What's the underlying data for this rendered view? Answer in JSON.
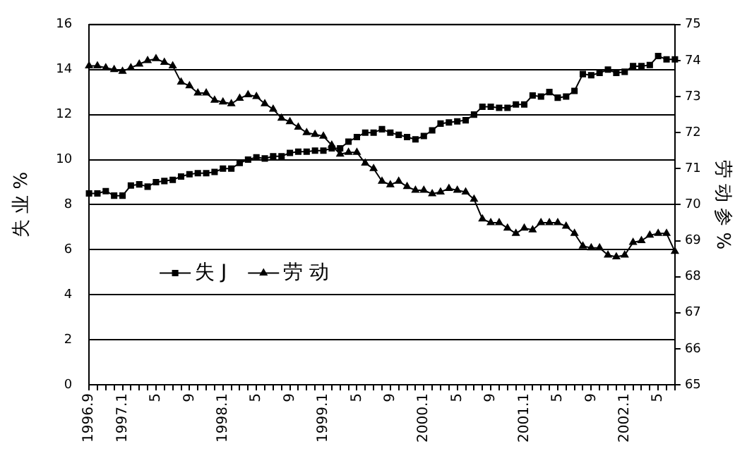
{
  "chart_data": {
    "type": "line",
    "ylabel": "失 业 %",
    "y2label": "劳 动 参 %",
    "categories": [
      "1996.9",
      null,
      null,
      null,
      "1997.1",
      null,
      null,
      null,
      "5",
      null,
      null,
      null,
      "9",
      null,
      null,
      null,
      "1998.1",
      null,
      null,
      null,
      "5",
      null,
      null,
      null,
      "9",
      null,
      null,
      null,
      "1999.1",
      null,
      null,
      null,
      "5",
      null,
      null,
      null,
      "9",
      null,
      null,
      null,
      "2000.1",
      null,
      null,
      null,
      "5",
      null,
      null,
      null,
      "9",
      null,
      null,
      null,
      "2001.1",
      null,
      null,
      null,
      "5",
      null,
      null,
      null,
      "9",
      null,
      null,
      null,
      "2002.1",
      null,
      null,
      null,
      "5",
      null,
      null
    ],
    "series": [
      {
        "name": "失 J",
        "color": "#000000",
        "marker": "square",
        "values": [
          8.5,
          8.5,
          8.6,
          8.4,
          8.4,
          8.85,
          8.9,
          8.8,
          9.0,
          9.05,
          9.1,
          9.25,
          9.35,
          9.4,
          9.4,
          9.45,
          9.6,
          9.6,
          9.85,
          10.0,
          10.1,
          10.05,
          10.15,
          10.15,
          10.3,
          10.35,
          10.35,
          10.4,
          10.4,
          10.5,
          10.5,
          10.8,
          11.0,
          11.2,
          11.2,
          11.35,
          11.2,
          11.1,
          11.0,
          10.9,
          11.05,
          11.3,
          11.6,
          11.65,
          11.7,
          11.75,
          12.0,
          12.35,
          12.35,
          12.3,
          12.3,
          12.45,
          12.45,
          12.85,
          12.8,
          13.0,
          12.75,
          12.8,
          13.05,
          13.8,
          13.75,
          13.85,
          14.0,
          13.85,
          13.9,
          14.15,
          14.15,
          14.2,
          14.6,
          14.45,
          14.45
        ]
      },
      {
        "name": "劳 动",
        "color": "#000000",
        "marker": "triangle",
        "axis": "y2",
        "values": [
          73.85,
          73.85,
          73.8,
          73.75,
          73.7,
          73.8,
          73.9,
          74.0,
          74.05,
          73.95,
          73.85,
          73.4,
          73.3,
          73.1,
          73.1,
          72.9,
          72.85,
          72.8,
          72.95,
          73.05,
          73.0,
          72.8,
          72.65,
          72.4,
          72.3,
          72.15,
          72.0,
          71.95,
          71.9,
          71.65,
          71.4,
          71.45,
          71.45,
          71.15,
          71.0,
          70.65,
          70.55,
          70.65,
          70.5,
          70.4,
          70.4,
          70.3,
          70.35,
          70.45,
          70.4,
          70.35,
          70.15,
          69.6,
          69.5,
          69.5,
          69.35,
          69.2,
          69.35,
          69.3,
          69.5,
          69.5,
          69.5,
          69.4,
          69.2,
          68.85,
          68.8,
          68.8,
          68.6,
          68.55,
          68.6,
          68.95,
          69.0,
          69.15,
          69.2,
          69.2,
          68.7
        ]
      }
    ],
    "ylim": [
      0,
      16
    ],
    "yticks": [
      0,
      2,
      4,
      6,
      8,
      10,
      12,
      14,
      16
    ],
    "y2lim": [
      65,
      75
    ],
    "y2ticks": [
      65,
      66,
      67,
      68,
      69,
      70,
      71,
      72,
      73,
      74,
      75
    ],
    "grid": "y",
    "legend": "left",
    "line_style": "solid"
  }
}
